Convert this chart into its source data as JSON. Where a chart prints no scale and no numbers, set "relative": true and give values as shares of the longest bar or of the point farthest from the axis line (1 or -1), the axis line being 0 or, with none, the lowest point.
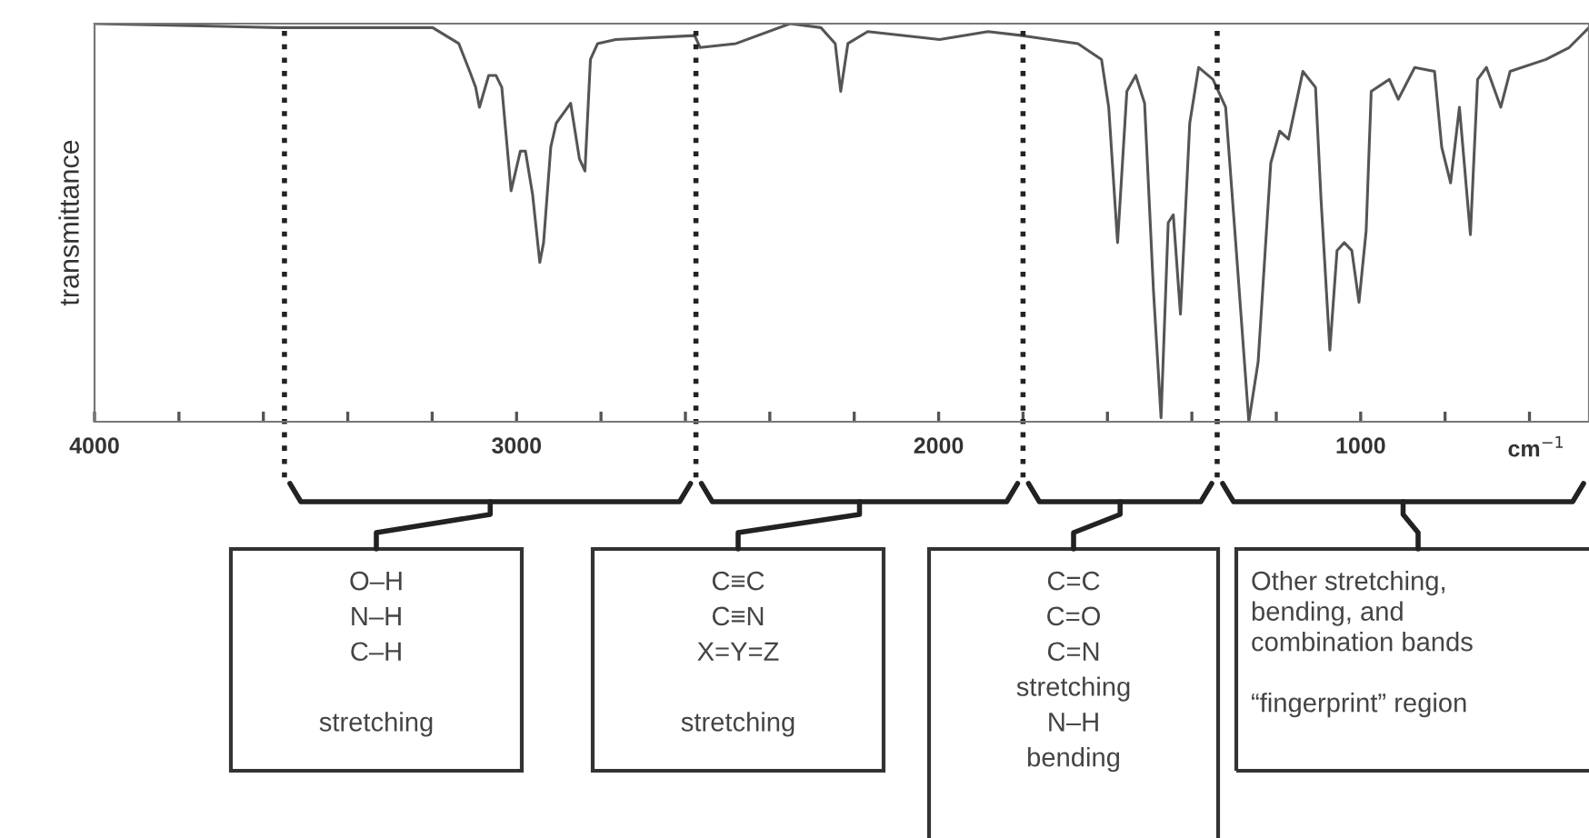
{
  "chart_data": {
    "type": "line",
    "relative": true,
    "ylabel": "transmittance",
    "xlabel": "cm$^{−1}$",
    "xlim": [
      4000,
      459
    ],
    "xticks": [
      4000,
      {
        "value": 3800,
        "label": null
      },
      {
        "value": 3600,
        "label": null
      },
      {
        "value": 3400,
        "label": null
      },
      {
        "value": 3200,
        "label": null
      },
      3000,
      {
        "value": 2800,
        "label": null
      },
      {
        "value": 2600,
        "label": null
      },
      {
        "value": 2400,
        "label": null
      },
      {
        "value": 2200,
        "label": null
      },
      2000,
      {
        "value": 1800,
        "label": null
      },
      {
        "value": 1600,
        "label": null
      },
      {
        "value": 1400,
        "label": null
      },
      {
        "value": 1200,
        "label": null
      },
      1000,
      {
        "value": 800,
        "label": null
      },
      {
        "value": 600,
        "label": null
      }
    ],
    "grid": false,
    "marker": "none",
    "line_style": "solid",
    "series": [
      {
        "color": "#555555",
        "x": [
          4000,
          3566,
          3199,
          3137,
          3111,
          3097,
          3088,
          3066,
          3049,
          3035,
          3013,
          2991,
          2979,
          2962,
          2945,
          2936,
          2919,
          2906,
          2872,
          2851,
          2838,
          2825,
          2808,
          2765,
          2578,
          2565,
          2480,
          2352,
          2279,
          2245,
          2232,
          2215,
          2168,
          1998,
          1883,
          1802,
          1670,
          1614,
          1597,
          1576,
          1554,
          1533,
          1512,
          1491,
          1473,
          1456,
          1444,
          1427,
          1405,
          1384,
          1350,
          1320,
          1294,
          1265,
          1243,
          1213,
          1192,
          1171,
          1137,
          1107,
          1094,
          1073,
          1056,
          1039,
          1021,
          1004,
          987,
          975,
          932,
          911,
          872,
          825,
          808,
          787,
          766,
          740,
          723,
          702,
          668,
          646,
          561,
          506,
          459
        ],
        "values": [
          1.0,
          0.99,
          0.99,
          0.95,
          0.88,
          0.84,
          0.79,
          0.87,
          0.87,
          0.84,
          0.58,
          0.68,
          0.68,
          0.57,
          0.4,
          0.45,
          0.69,
          0.75,
          0.8,
          0.66,
          0.63,
          0.91,
          0.95,
          0.96,
          0.97,
          0.94,
          0.95,
          1.0,
          0.99,
          0.95,
          0.83,
          0.95,
          0.98,
          0.96,
          0.98,
          0.97,
          0.95,
          0.91,
          0.79,
          0.45,
          0.83,
          0.87,
          0.8,
          0.33,
          0.01,
          0.5,
          0.52,
          0.27,
          0.75,
          0.89,
          0.86,
          0.79,
          0.42,
          0.0,
          0.15,
          0.65,
          0.73,
          0.71,
          0.88,
          0.84,
          0.56,
          0.18,
          0.43,
          0.45,
          0.43,
          0.3,
          0.48,
          0.83,
          0.86,
          0.81,
          0.89,
          0.88,
          0.69,
          0.6,
          0.79,
          0.47,
          0.86,
          0.89,
          0.79,
          0.88,
          0.91,
          0.94,
          0.99
        ]
      }
    ],
    "ref_lines": [
      {
        "axis": "x",
        "value": 3550,
        "color": "#222222",
        "line_style": "dotted"
      },
      {
        "axis": "x",
        "value": 2575,
        "color": "#222222",
        "line_style": "dotted"
      },
      {
        "axis": "x",
        "value": 1800,
        "color": "#222222",
        "line_style": "dotted"
      },
      {
        "axis": "x",
        "value": 1340,
        "color": "#222222",
        "line_style": "dotted"
      }
    ],
    "annotations": [
      "O–H\nN–H\nC–H\n\nstretching",
      "C≡C\nC≡N\nX=Y=Z\n\nstretching",
      "C=C\nC=O\nC=N\nstretching\nN–H\nbending",
      "Other stretching,\nbending, and\ncombination bands\n\n“fingerprint” region"
    ]
  }
}
